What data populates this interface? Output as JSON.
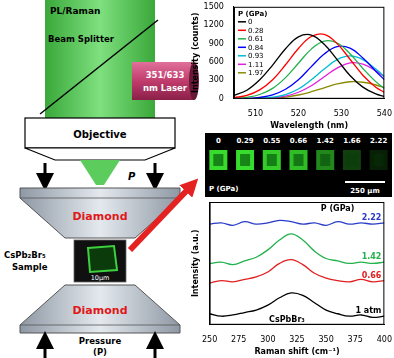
{
  "diagram": {
    "beam": "PL/Raman",
    "beam_splitter": "Beam Splitter",
    "laser": [
      "351/633",
      "nm Laser"
    ],
    "objective": "Objective",
    "top_pressure": "P",
    "diamonds": [
      "Diamond",
      "Diamond"
    ],
    "sample": [
      "CsPb₂Br₅",
      "Sample"
    ],
    "sample_scale": "10μm",
    "bottom_pressure": [
      "Pressure",
      "(P)"
    ]
  },
  "image_strip": {
    "pressures": [
      0,
      0.29,
      0.55,
      0.66,
      1.42,
      1.66,
      2.22
    ],
    "label": "P (GPa)",
    "scale_bar": "250 μm"
  },
  "chart_data": [
    {
      "type": "line",
      "x_label": "Wavelength (nm)",
      "y_label": "Intensity (counts)",
      "legend_title": "P (GPa)",
      "legend": "top-left",
      "grid": false,
      "x": [
        505,
        508,
        511,
        514,
        517,
        520,
        523,
        526,
        529,
        532,
        535,
        538,
        540
      ],
      "xlim": [
        505,
        540
      ],
      "xticks": [
        510,
        520,
        530,
        540
      ],
      "ylim": [
        0,
        1500
      ],
      "yticks": [
        0,
        300,
        600,
        900,
        1200,
        1500
      ],
      "series": [
        {
          "name": "0",
          "color": "#000000",
          "values": [
            55,
            140,
            310,
            550,
            815,
            1010,
            1040,
            890,
            640,
            380,
            190,
            80,
            40
          ]
        },
        {
          "name": "0.28",
          "color": "#ff0000",
          "values": [
            18,
            55,
            145,
            310,
            555,
            820,
            1015,
            1050,
            900,
            645,
            385,
            190,
            105
          ]
        },
        {
          "name": "0.61",
          "color": "#22b14c",
          "values": [
            7,
            24,
            70,
            170,
            345,
            580,
            810,
            940,
            910,
            735,
            495,
            280,
            170
          ]
        },
        {
          "name": "0.84",
          "color": "#0000ff",
          "values": [
            0,
            6,
            22,
            64,
            155,
            310,
            525,
            730,
            850,
            825,
            665,
            450,
            310
          ]
        },
        {
          "name": "0.93",
          "color": "#00bcd4",
          "values": [
            0,
            2,
            8,
            26,
            70,
            160,
            310,
            485,
            640,
            700,
            640,
            485,
            365
          ]
        },
        {
          "name": "1.11",
          "color": "#e020e0",
          "values": [
            0,
            1,
            4,
            15,
            43,
            107,
            212,
            360,
            500,
            585,
            565,
            455,
            360
          ]
        },
        {
          "name": "1.97",
          "color": "#8b8b00",
          "values": [
            0,
            1,
            3,
            11,
            29,
            62,
            115,
            180,
            243,
            278,
            270,
            225,
            180
          ]
        }
      ]
    },
    {
      "type": "line",
      "x_label": "Raman shift (cm⁻¹)",
      "y_label": "Intensity (a.u.)",
      "legend_title": "P (GPa)",
      "legend": "inline",
      "annotations": [
        "CsPbBr₃"
      ],
      "grid": false,
      "tick_labels": "x",
      "x": [
        250,
        260,
        270,
        280,
        290,
        300,
        310,
        320,
        330,
        340,
        350,
        360,
        370,
        380,
        390,
        400
      ],
      "xlim": [
        250,
        400
      ],
      "xticks": [
        250,
        275,
        300,
        325,
        350,
        375,
        400
      ],
      "ylim": [
        0,
        10
      ],
      "series": [
        {
          "name": "2.22",
          "color": "#2a3cc8",
          "values": [
            8.2,
            8.3,
            8.1,
            8.4,
            8.2,
            8.3,
            8.5,
            8.4,
            8.2,
            8.3,
            8.1,
            8.4,
            8.2,
            8.3,
            8.2,
            8.3
          ]
        },
        {
          "name": "1.42",
          "color": "#22b14c",
          "values": [
            5.0,
            5.1,
            4.9,
            5.2,
            5.5,
            6.1,
            6.9,
            7.4,
            6.9,
            6.0,
            5.4,
            5.2,
            5.0,
            5.1,
            5.0,
            5.1
          ]
        },
        {
          "name": "0.66",
          "color": "#e02020",
          "values": [
            3.4,
            3.6,
            3.5,
            3.7,
            3.9,
            4.3,
            5.0,
            5.3,
            4.9,
            4.2,
            3.8,
            3.6,
            3.5,
            3.7,
            3.5,
            3.6
          ]
        },
        {
          "name": "1 atm",
          "color": "#000000",
          "values": [
            0.9,
            0.7,
            0.8,
            1.0,
            1.2,
            1.6,
            2.2,
            2.6,
            2.4,
            1.8,
            1.2,
            0.9,
            0.7,
            0.8,
            0.6,
            0.7
          ]
        }
      ]
    }
  ]
}
